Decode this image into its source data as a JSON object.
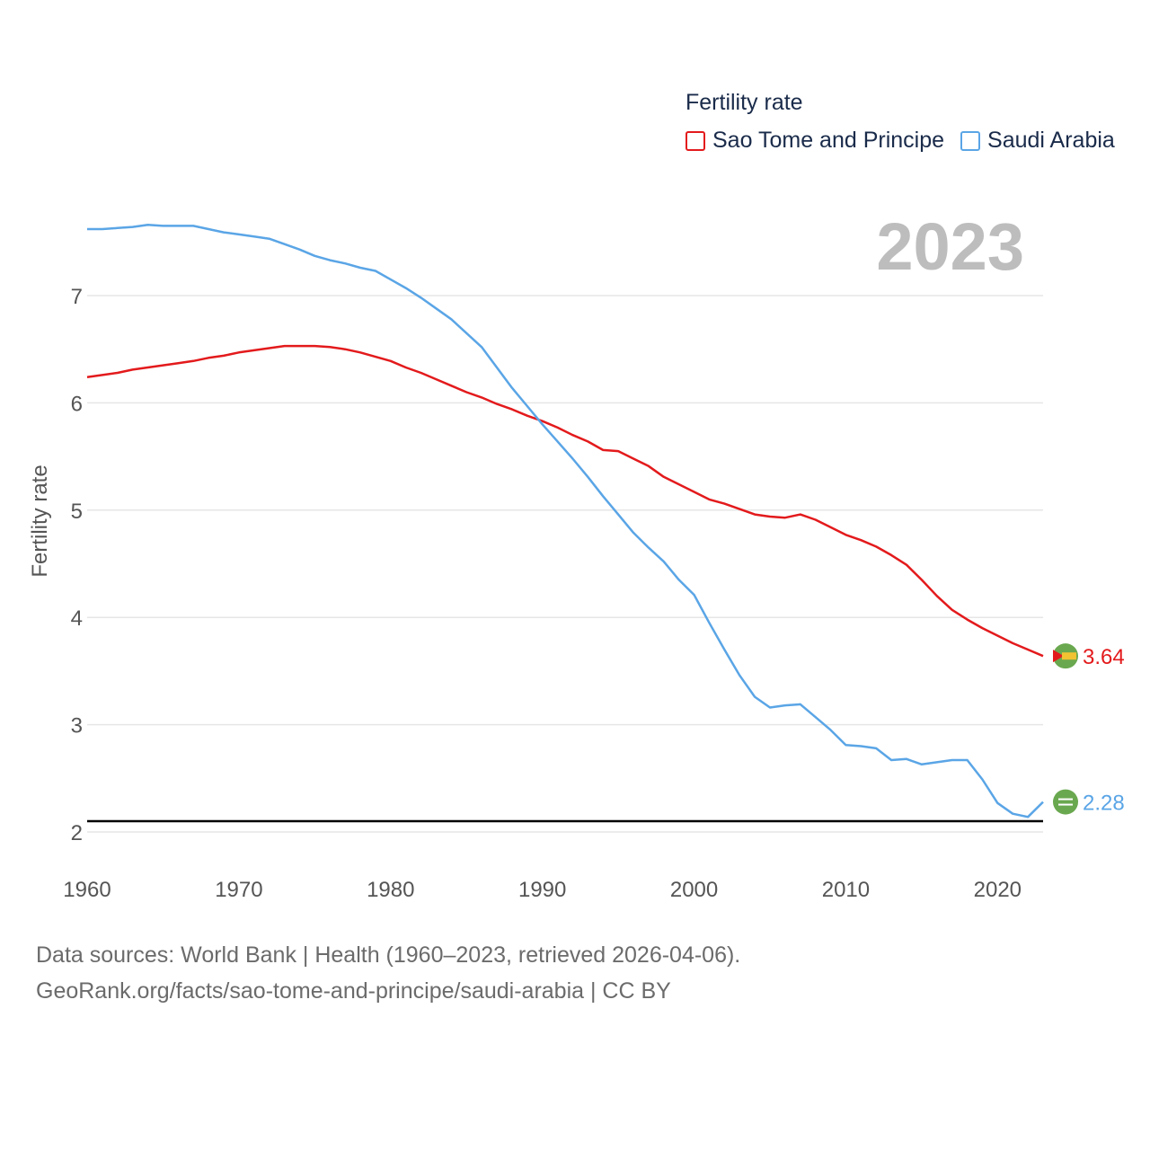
{
  "legend": {
    "title": "Fertility rate",
    "items": [
      {
        "label": "Sao Tome and Principe",
        "color": "#e31a1c"
      },
      {
        "label": "Saudi Arabia",
        "color": "#5aa5e6"
      }
    ]
  },
  "year_label": "2023",
  "footer": {
    "line1": "Data sources: World Bank | Health (1960–2023, retrieved 2026-04-06).",
    "line2": "GeoRank.org/facts/sao-tome-and-principe/saudi-arabia | CC BY"
  },
  "chart_data": {
    "type": "line",
    "title": "Fertility rate",
    "xlabel": "",
    "ylabel": "Fertility rate",
    "xlim": [
      1960,
      2023
    ],
    "ylim": [
      2,
      7.7
    ],
    "x_ticks": [
      1960,
      1970,
      1980,
      1990,
      2000,
      2010,
      2020
    ],
    "y_ticks": [
      2,
      3,
      4,
      5,
      6,
      7
    ],
    "reference_line": 2.1,
    "grid": true,
    "legend_position": "top-right",
    "x": [
      1960,
      1961,
      1962,
      1963,
      1964,
      1965,
      1966,
      1967,
      1968,
      1969,
      1970,
      1971,
      1972,
      1973,
      1974,
      1975,
      1976,
      1977,
      1978,
      1979,
      1980,
      1981,
      1982,
      1983,
      1984,
      1985,
      1986,
      1987,
      1988,
      1989,
      1990,
      1991,
      1992,
      1993,
      1994,
      1995,
      1996,
      1997,
      1998,
      1999,
      2000,
      2001,
      2002,
      2003,
      2004,
      2005,
      2006,
      2007,
      2008,
      2009,
      2010,
      2011,
      2012,
      2013,
      2014,
      2015,
      2016,
      2017,
      2018,
      2019,
      2020,
      2021,
      2022,
      2023
    ],
    "series": [
      {
        "name": "Sao Tome and Principe",
        "color": "#e31a1c",
        "end_label": "3.64",
        "values": [
          6.24,
          6.26,
          6.28,
          6.31,
          6.33,
          6.35,
          6.37,
          6.39,
          6.42,
          6.44,
          6.47,
          6.49,
          6.51,
          6.53,
          6.53,
          6.53,
          6.52,
          6.5,
          6.47,
          6.43,
          6.39,
          6.33,
          6.28,
          6.22,
          6.16,
          6.1,
          6.05,
          5.99,
          5.94,
          5.88,
          5.83,
          5.77,
          5.7,
          5.64,
          5.56,
          5.55,
          5.48,
          5.41,
          5.31,
          5.24,
          5.17,
          5.1,
          5.06,
          5.01,
          4.96,
          4.94,
          4.93,
          4.96,
          4.91,
          4.84,
          4.77,
          4.72,
          4.66,
          4.58,
          4.49,
          4.35,
          4.2,
          4.07,
          3.98,
          3.9,
          3.83,
          3.76,
          3.7,
          3.64
        ]
      },
      {
        "name": "Saudi Arabia",
        "color": "#5aa5e6",
        "end_label": "2.28",
        "values": [
          7.62,
          7.62,
          7.63,
          7.64,
          7.66,
          7.65,
          7.65,
          7.65,
          7.62,
          7.59,
          7.57,
          7.55,
          7.53,
          7.48,
          7.43,
          7.37,
          7.33,
          7.3,
          7.26,
          7.23,
          7.15,
          7.07,
          6.98,
          6.88,
          6.78,
          6.65,
          6.52,
          6.33,
          6.14,
          5.97,
          5.8,
          5.64,
          5.48,
          5.31,
          5.13,
          4.96,
          4.79,
          4.65,
          4.52,
          4.35,
          4.21,
          3.95,
          3.7,
          3.46,
          3.26,
          3.16,
          3.18,
          3.19,
          3.07,
          2.95,
          2.81,
          2.8,
          2.78,
          2.67,
          2.68,
          2.63,
          2.65,
          2.67,
          2.67,
          2.49,
          2.27,
          2.17,
          2.14,
          2.28
        ]
      }
    ]
  }
}
